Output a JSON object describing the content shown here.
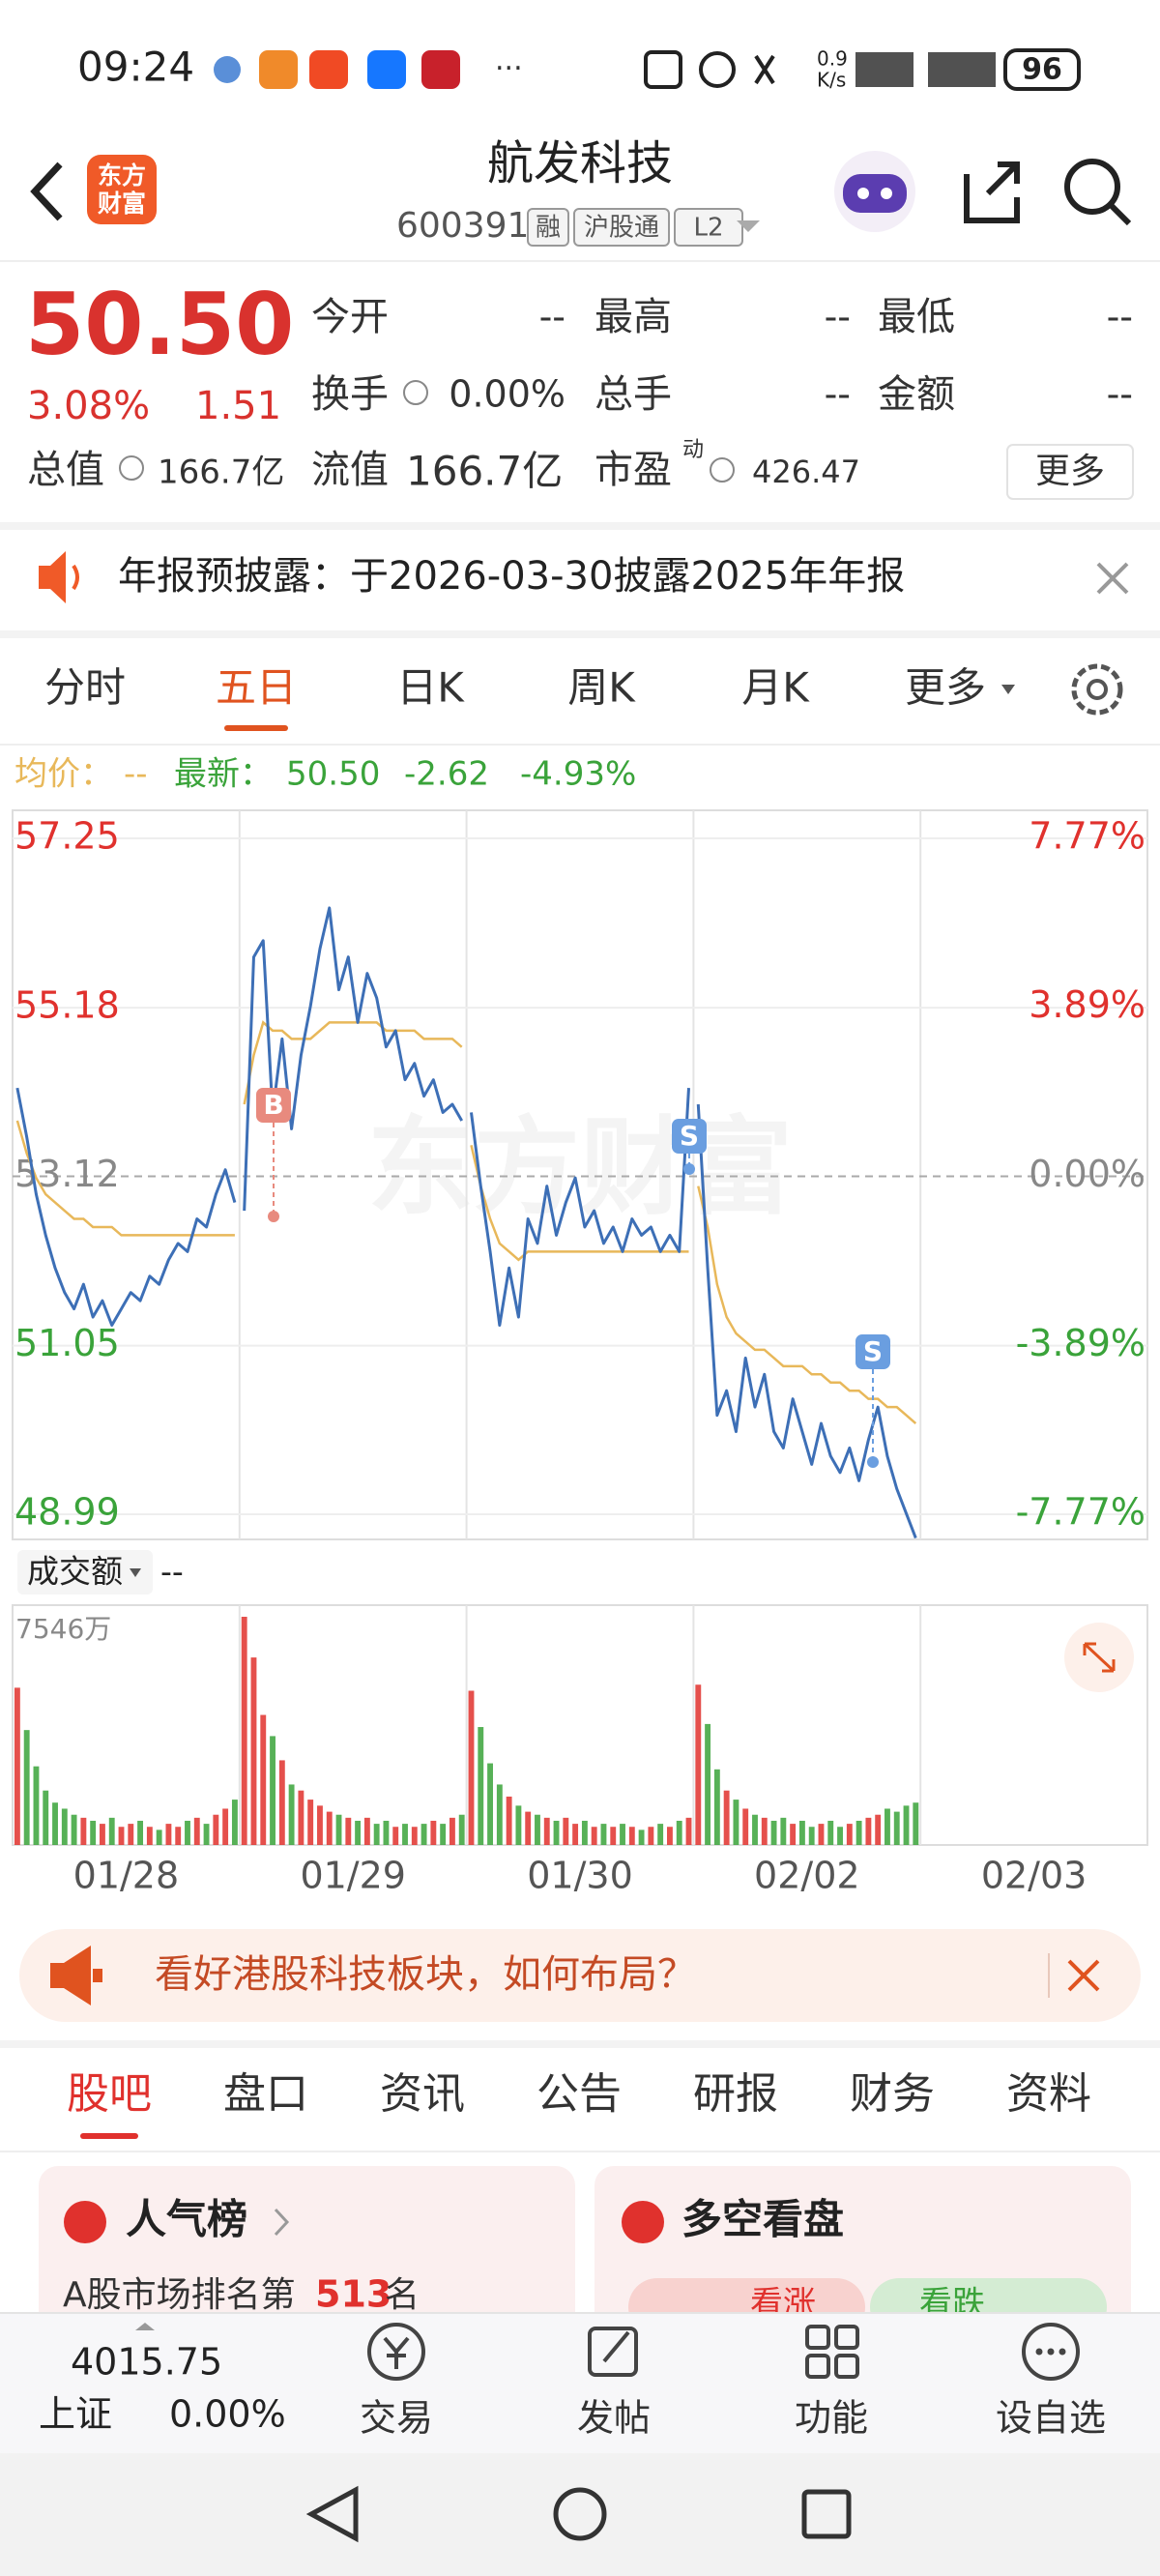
{
  "status_bar": {
    "time": "09:24",
    "speed": [
      "0.9",
      "K/s"
    ],
    "battery": "96"
  },
  "header": {
    "logo": [
      "东方",
      "财富"
    ],
    "title": "航发科技",
    "code": "600391",
    "tags": [
      "融",
      "沪股通",
      "L2"
    ]
  },
  "quote": {
    "price": "50.50",
    "change_pct": "3.08%",
    "change": "1.51",
    "more": "更多",
    "fields": [
      [
        "今开",
        "--"
      ],
      [
        "最高",
        "--"
      ],
      [
        "最低",
        "--"
      ],
      [
        "换手",
        "0.00%"
      ],
      [
        "总手",
        "--"
      ],
      [
        "金额",
        "--"
      ]
    ],
    "market_value": {
      "label": "总值",
      "value": "166.7亿"
    },
    "float_value": {
      "label": "流值",
      "value": "166.7亿"
    },
    "pe": {
      "label": "市盈",
      "sup": "动",
      "value": "426.47"
    }
  },
  "notice": "年报预披露：于2026-03-30披露2025年年报",
  "period_tabs": {
    "items": [
      "分时",
      "五日",
      "日K",
      "周K",
      "月K",
      "更多"
    ],
    "active": 1
  },
  "chart_info": {
    "avg_label": "均价：",
    "avg_value": "--",
    "latest_label": "最新：",
    "latest": "50.50",
    "change": "-2.62",
    "pct": "-4.93%"
  },
  "chart_data": {
    "type": "line",
    "watermark": "东方财富",
    "ylim": [
      48.99,
      57.25
    ],
    "yticks": [
      57.25,
      55.18,
      53.12,
      51.05,
      48.99
    ],
    "y2lim": [
      -7.77,
      7.77
    ],
    "y2ticks": [
      {
        "value": 7.77,
        "label": "7.77%"
      },
      {
        "value": 3.89,
        "label": "3.89%"
      },
      {
        "value": 0,
        "label": "0.00%"
      },
      {
        "value": -3.89,
        "label": "-3.89%"
      },
      {
        "value": -7.77,
        "label": "-7.77%"
      }
    ],
    "price_color": "#3d6fb6",
    "avg_color": "#e8b85a",
    "up_color": "#e0312d",
    "down_color": "#3aa33a",
    "volume_label": "成交额",
    "volume_value": "--",
    "volume_max_label": "7546万",
    "volume_ylim": [
      0,
      7546
    ],
    "trades": [
      {
        "label": "B"
      },
      {
        "label": "S"
      },
      {
        "label": "S"
      }
    ],
    "days": [
      {
        "label": "01/28",
        "price": [
          54.2,
          53.6,
          52.9,
          52.4,
          52.0,
          51.7,
          51.5,
          51.8,
          51.4,
          51.6,
          51.3,
          51.5,
          51.7,
          51.6,
          51.9,
          51.8,
          52.1,
          52.3,
          52.2,
          52.6,
          52.5,
          52.9,
          53.2,
          52.8
        ],
        "avg": [
          53.8,
          53.4,
          53.1,
          52.9,
          52.8,
          52.7,
          52.6,
          52.6,
          52.5,
          52.5,
          52.5,
          52.4,
          52.4,
          52.4,
          52.4,
          52.4,
          52.4,
          52.4,
          52.4,
          52.4,
          52.4,
          52.4,
          52.4,
          52.4
        ],
        "volume": [
          5200,
          3800,
          2600,
          1800,
          1400,
          1200,
          1000,
          900,
          800,
          700,
          900,
          600,
          700,
          800,
          600,
          500,
          700,
          600,
          800,
          900,
          700,
          1000,
          1200,
          1500
        ]
      },
      {
        "label": "01/29",
        "price": [
          52.7,
          55.8,
          56.0,
          53.9,
          54.8,
          53.7,
          54.6,
          55.2,
          55.9,
          56.4,
          55.4,
          55.8,
          55.0,
          55.6,
          55.3,
          54.7,
          54.9,
          54.3,
          54.5,
          54.1,
          54.3,
          53.9,
          54.0,
          53.8
        ],
        "avg": [
          54.0,
          54.6,
          55.0,
          54.9,
          54.9,
          54.8,
          54.8,
          54.8,
          54.9,
          55.0,
          55.0,
          55.0,
          55.0,
          55.0,
          55.0,
          54.9,
          54.9,
          54.9,
          54.9,
          54.8,
          54.8,
          54.8,
          54.8,
          54.7
        ],
        "volume": [
          7546,
          6200,
          4300,
          3600,
          2800,
          2000,
          1800,
          1500,
          1300,
          1100,
          1000,
          900,
          800,
          900,
          700,
          800,
          600,
          700,
          600,
          700,
          800,
          700,
          900,
          1000
        ]
      },
      {
        "label": "01/30",
        "price": [
          53.9,
          53.0,
          52.2,
          51.3,
          52.0,
          51.4,
          52.6,
          52.3,
          53.0,
          52.4,
          52.8,
          53.1,
          52.5,
          52.7,
          52.3,
          52.5,
          52.2,
          52.6,
          52.4,
          52.5,
          52.2,
          52.4,
          52.2,
          54.2
        ],
        "avg": [
          53.5,
          53.0,
          52.6,
          52.3,
          52.2,
          52.1,
          52.2,
          52.2,
          52.2,
          52.2,
          52.2,
          52.2,
          52.2,
          52.2,
          52.2,
          52.2,
          52.2,
          52.2,
          52.2,
          52.2,
          52.2,
          52.2,
          52.2,
          52.2
        ],
        "volume": [
          5100,
          3900,
          2700,
          2000,
          1600,
          1300,
          1100,
          1000,
          900,
          800,
          900,
          700,
          800,
          600,
          700,
          600,
          700,
          600,
          500,
          600,
          700,
          600,
          800,
          900
        ]
      },
      {
        "label": "02/02",
        "price": [
          54.0,
          52.0,
          50.2,
          50.5,
          50.0,
          50.9,
          50.3,
          50.7,
          50.0,
          49.8,
          50.4,
          50.0,
          49.6,
          50.1,
          49.7,
          49.5,
          49.8,
          49.4,
          49.9,
          50.3,
          49.7,
          49.3,
          49.0,
          48.7
        ],
        "avg": [
          53.0,
          52.5,
          51.8,
          51.4,
          51.2,
          51.1,
          51.0,
          51.0,
          50.9,
          50.8,
          50.8,
          50.8,
          50.7,
          50.7,
          50.6,
          50.6,
          50.5,
          50.5,
          50.4,
          50.4,
          50.3,
          50.3,
          50.2,
          50.1
        ],
        "volume": [
          5300,
          4000,
          2500,
          1800,
          1500,
          1200,
          1000,
          900,
          800,
          900,
          700,
          800,
          600,
          700,
          800,
          600,
          700,
          800,
          900,
          1000,
          1200,
          1100,
          1300,
          1400
        ]
      },
      {
        "label": "02/03",
        "price": [],
        "avg": [],
        "volume": []
      }
    ]
  },
  "ad": "看好港股科技板块，如何布局？",
  "content_tabs": {
    "items": [
      "股吧",
      "盘口",
      "资讯",
      "公告",
      "研报",
      "财务",
      "资料"
    ],
    "active": 0
  },
  "cards": [
    {
      "title": "人气榜",
      "text_prefix": "A股市场排名第",
      "rank": "513",
      "text_suffix": "名"
    },
    {
      "title": "多空看盘",
      "buttons": [
        "看涨",
        "看跌"
      ]
    }
  ],
  "index_quote": {
    "value": "4015.75",
    "name": "上证",
    "pct": "0.00%"
  },
  "toolbar": [
    "交易",
    "发帖",
    "功能",
    "设自选"
  ]
}
